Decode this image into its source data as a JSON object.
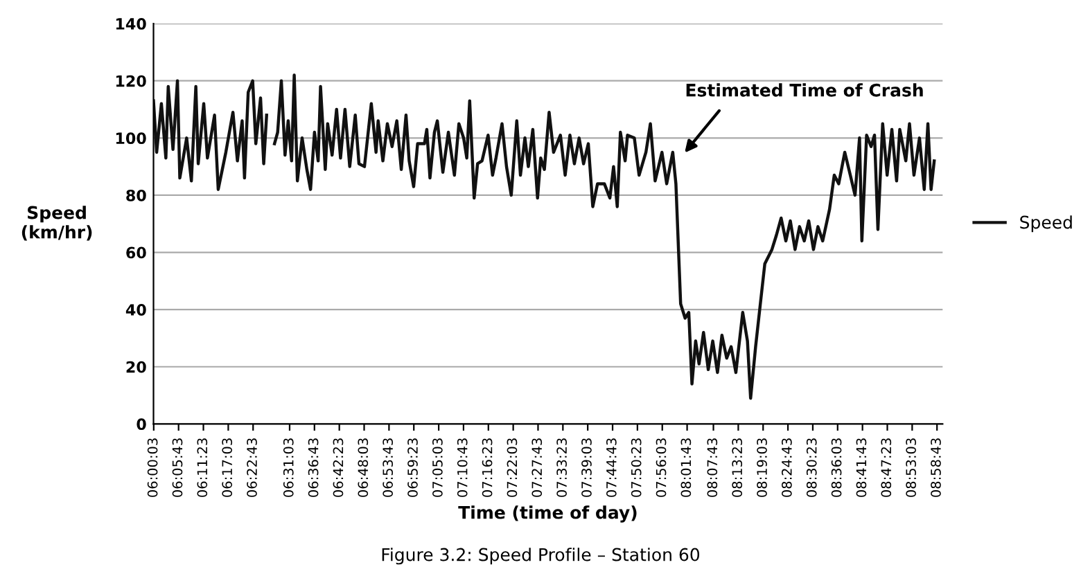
{
  "chart_data": {
    "type": "line",
    "xlabel": "Time (time of day)",
    "ylabel": "Speed\n(km/hr)",
    "annotations": [
      "Estimated Time of Crash",
      "Figure 3.2: Speed Profile – Station 60"
    ],
    "xlim": [
      6.0,
      9.0
    ],
    "ylim": [
      0,
      140
    ],
    "yticks": [
      0,
      20,
      40,
      60,
      80,
      100,
      120,
      140
    ],
    "xticks": [
      {
        "value": 6.0008,
        "label": "06:00:03"
      },
      {
        "value": 6.0953,
        "label": "06:05:43"
      },
      {
        "value": 6.1897,
        "label": "06:11:23"
      },
      {
        "value": 6.2842,
        "label": "06:17:03"
      },
      {
        "value": 6.3786,
        "label": "06:22:43"
      },
      {
        "value": 6.5175,
        "label": "06:31:03"
      },
      {
        "value": 6.6119,
        "label": "06:36:43"
      },
      {
        "value": 6.7064,
        "label": "06:42:23"
      },
      {
        "value": 6.8008,
        "label": "06:48:03"
      },
      {
        "value": 6.8953,
        "label": "06:53:43"
      },
      {
        "value": 6.9897,
        "label": "06:59:23"
      },
      {
        "value": 7.0842,
        "label": "07:05:03"
      },
      {
        "value": 7.1786,
        "label": "07:10:43"
      },
      {
        "value": 7.2731,
        "label": "07:16:23"
      },
      {
        "value": 7.3675,
        "label": "07:22:03"
      },
      {
        "value": 7.4619,
        "label": "07:27:43"
      },
      {
        "value": 7.5564,
        "label": "07:33:23"
      },
      {
        "value": 7.6508,
        "label": "07:39:03"
      },
      {
        "value": 7.7453,
        "label": "07:44:43"
      },
      {
        "value": 7.8397,
        "label": "07:50:23"
      },
      {
        "value": 7.9342,
        "label": "07:56:03"
      },
      {
        "value": 8.0286,
        "label": "08:01:43"
      },
      {
        "value": 8.1286,
        "label": "08:07:43"
      },
      {
        "value": 8.2231,
        "label": "08:13:23"
      },
      {
        "value": 8.3175,
        "label": "08:19:03"
      },
      {
        "value": 8.4119,
        "label": "08:24:43"
      },
      {
        "value": 8.5064,
        "label": "08:30:23"
      },
      {
        "value": 8.6008,
        "label": "08:36:03"
      },
      {
        "value": 8.6953,
        "label": "08:41:43"
      },
      {
        "value": 8.7897,
        "label": "08:47:23"
      },
      {
        "value": 8.8842,
        "label": "08:53:03"
      },
      {
        "value": 8.9786,
        "label": "08:58:43"
      }
    ],
    "grid": "y",
    "legend": "right",
    "marker": "none",
    "line_style": "solid",
    "series": [
      {
        "name": "Speed",
        "color": "#111111",
        "x": [
          6.0,
          6.012,
          6.03,
          6.047,
          6.056,
          6.074,
          6.091,
          6.1,
          6.126,
          6.144,
          6.161,
          6.17,
          6.191,
          6.205,
          6.232,
          6.246,
          6.275,
          6.302,
          6.319,
          6.337,
          6.346,
          6.36,
          6.377,
          6.389,
          6.407,
          6.419,
          6.43,
          6.445,
          6.46,
          6.472,
          6.486,
          6.5,
          6.512,
          6.525,
          6.535,
          6.547,
          6.565,
          6.583,
          6.597,
          6.612,
          6.626,
          6.635,
          6.653,
          6.662,
          6.679,
          6.696,
          6.711,
          6.728,
          6.746,
          6.767,
          6.781,
          6.802,
          6.828,
          6.846,
          6.854,
          6.872,
          6.889,
          6.907,
          6.925,
          6.942,
          6.96,
          6.972,
          6.989,
          7.004,
          7.03,
          7.039,
          7.051,
          7.068,
          7.079,
          7.1,
          7.121,
          7.144,
          7.161,
          7.179,
          7.191,
          7.202,
          7.219,
          7.232,
          7.249,
          7.272,
          7.289,
          7.302,
          7.325,
          7.342,
          7.36,
          7.381,
          7.395,
          7.412,
          7.425,
          7.442,
          7.46,
          7.472,
          7.486,
          7.504,
          7.521,
          7.547,
          7.565,
          7.583,
          7.6,
          7.618,
          7.635,
          7.653,
          7.67,
          7.688,
          7.714,
          7.735,
          7.749,
          7.763,
          7.775,
          7.793,
          7.802,
          7.828,
          7.846,
          7.872,
          7.889,
          7.907,
          7.933,
          7.951,
          7.974,
          7.986,
          8.004,
          8.021,
          8.035,
          8.047,
          8.061,
          8.074,
          8.091,
          8.109,
          8.126,
          8.144,
          8.161,
          8.179,
          8.196,
          8.214,
          8.24,
          8.258,
          8.27,
          8.289,
          8.307,
          8.324,
          8.351,
          8.368,
          8.386,
          8.404,
          8.421,
          8.439,
          8.456,
          8.474,
          8.491,
          8.509,
          8.526,
          8.544,
          8.57,
          8.588,
          8.605,
          8.628,
          8.649,
          8.667,
          8.684,
          8.693,
          8.711,
          8.728,
          8.741,
          8.754,
          8.772,
          8.789,
          8.807,
          8.825,
          8.837,
          8.86,
          8.874,
          8.891,
          8.912,
          8.93,
          8.944,
          8.956,
          8.968
        ],
        "values": [
          113,
          95,
          112,
          93,
          118,
          96,
          120,
          86,
          100,
          85,
          118,
          91,
          112,
          93,
          108,
          82,
          95,
          109,
          92,
          106,
          86,
          116,
          120,
          98,
          114,
          91,
          108,
          null,
          98,
          102,
          120,
          94,
          106,
          92,
          122,
          85,
          100,
          89,
          82,
          102,
          92,
          118,
          89,
          105,
          94,
          110,
          93,
          110,
          90,
          108,
          91,
          90,
          112,
          95,
          106,
          92,
          105,
          97,
          106,
          89,
          108,
          92,
          83,
          98,
          98,
          103,
          86,
          102,
          106,
          88,
          102,
          87,
          105,
          100,
          93,
          113,
          79,
          91,
          92,
          101,
          87,
          93,
          105,
          90,
          80,
          106,
          87,
          100,
          90,
          103,
          79,
          93,
          89,
          109,
          95,
          101,
          87,
          101,
          91,
          100,
          91,
          98,
          76,
          84,
          84,
          79,
          90,
          76,
          102,
          92,
          101,
          100,
          87,
          95,
          105,
          85,
          95,
          84,
          95,
          84,
          42,
          37,
          39,
          14,
          29,
          21,
          32,
          19,
          29,
          18,
          31,
          23,
          27,
          18,
          39,
          29,
          9,
          27,
          42,
          56,
          61,
          66,
          72,
          64,
          71,
          61,
          69,
          64,
          71,
          61,
          69,
          64,
          75,
          87,
          84,
          95,
          87,
          80,
          100,
          64,
          101,
          97,
          101,
          68,
          105,
          87,
          103,
          85,
          103,
          92,
          105,
          87,
          100,
          82,
          105,
          82,
          92
        ]
      }
    ]
  }
}
